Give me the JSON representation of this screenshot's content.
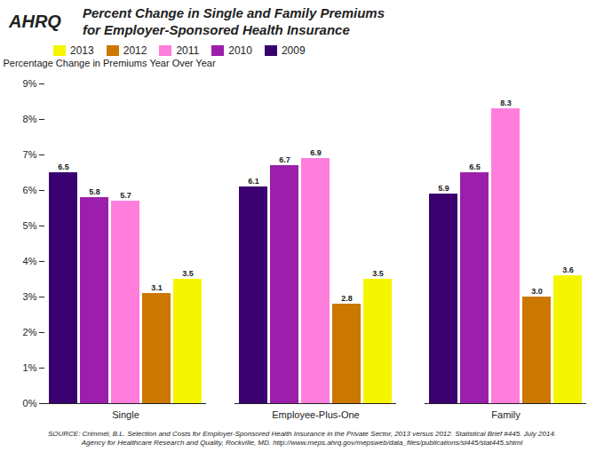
{
  "chart_data": {
    "type": "bar",
    "title": "Percent Change in Single and Family Premiums\nfor Employer-Sponsored Health Insurance",
    "ylabel": "Percentage Change in Premiums Year Over Year",
    "categories": [
      "Single",
      "Employee-Plus-One",
      "Family"
    ],
    "series": [
      {
        "name": "2009",
        "color": "#3a006f",
        "values": [
          6.5,
          6.1,
          5.9
        ],
        "value_labels": [
          "6.5",
          "6.1",
          "5.9"
        ]
      },
      {
        "name": "2010",
        "color": "#9b1faa",
        "values": [
          5.8,
          6.7,
          6.5
        ],
        "value_labels": [
          "5.8",
          "6.7",
          "6.5"
        ]
      },
      {
        "name": "2011",
        "color": "#ff7ddb",
        "values": [
          5.7,
          6.9,
          8.3
        ],
        "value_labels": [
          "5.7",
          "6.9",
          "8.3"
        ]
      },
      {
        "name": "2012",
        "color": "#cc7700",
        "values": [
          3.1,
          2.8,
          3.0
        ],
        "value_labels": [
          "3.1",
          "2.8",
          "3.0"
        ]
      },
      {
        "name": "2013",
        "color": "#f5f500",
        "values": [
          3.5,
          3.5,
          3.6
        ],
        "value_labels": [
          "3.5",
          "3.5",
          "3.6"
        ]
      }
    ],
    "ylim": [
      0,
      9
    ],
    "yticks": [
      {
        "value": 0,
        "label": "0%"
      },
      {
        "value": 1,
        "label": "1%"
      },
      {
        "value": 2,
        "label": "2%"
      },
      {
        "value": 3,
        "label": "3%"
      },
      {
        "value": 4,
        "label": "4%"
      },
      {
        "value": 5,
        "label": "5%"
      },
      {
        "value": 6,
        "label": "6%"
      },
      {
        "value": 7,
        "label": "7%"
      },
      {
        "value": 8,
        "label": "8%"
      },
      {
        "value": 9,
        "label": "9%"
      }
    ],
    "data_labels": true,
    "legend": "right",
    "annotations": [
      "AHRQ",
      "SOURCE: Crimmel, B.L. Selection and Costs for Employer-Sponsored Health Insurance in the Private Sector, 2013 versus 2012. Statistical Brief #445. July 2014.\nAgency for Healthcare Research and Quality, Rockville, MD. http://www.meps.ahrq.gov/mepsweb/data_files/publications/st445/stat445.shtml"
    ]
  }
}
